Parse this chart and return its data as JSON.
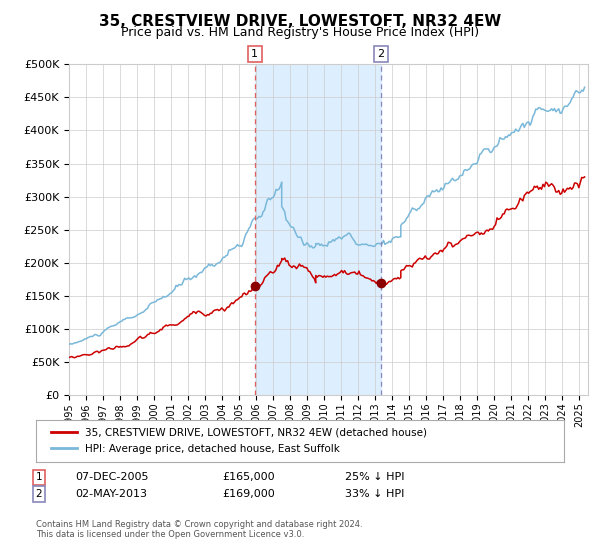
{
  "title": "35, CRESTVIEW DRIVE, LOWESTOFT, NR32 4EW",
  "subtitle": "Price paid vs. HM Land Registry's House Price Index (HPI)",
  "legend_line1": "35, CRESTVIEW DRIVE, LOWESTOFT, NR32 4EW (detached house)",
  "legend_line2": "HPI: Average price, detached house, East Suffolk",
  "footnote": "Contains HM Land Registry data © Crown copyright and database right 2024.\nThis data is licensed under the Open Government Licence v3.0.",
  "transaction1_date": "07-DEC-2005",
  "transaction1_price": "£165,000",
  "transaction1_hpi": "25% ↓ HPI",
  "transaction1_year": 2005.92,
  "transaction1_value": 165000,
  "transaction2_date": "02-MAY-2013",
  "transaction2_price": "£169,000",
  "transaction2_hpi": "33% ↓ HPI",
  "transaction2_year": 2013.34,
  "transaction2_value": 169000,
  "hpi_color": "#7ab8d9",
  "price_color": "#cc0000",
  "marker_color": "#8b0000",
  "vline1_color": "#e06060",
  "vline2_color": "#8888bb",
  "shade_color": "#ddeeff",
  "ylim": [
    0,
    500000
  ],
  "yticks": [
    0,
    50000,
    100000,
    150000,
    200000,
    250000,
    300000,
    350000,
    400000,
    450000,
    500000
  ],
  "background_color": "#ffffff",
  "grid_color": "#cccccc",
  "title_fontsize": 11,
  "subtitle_fontsize": 9,
  "axis_fontsize": 8,
  "tick_fontsize": 7,
  "hpi_linewidth": 1.1,
  "price_linewidth": 1.1,
  "xlim_start": 1995,
  "xlim_end": 2025.5
}
